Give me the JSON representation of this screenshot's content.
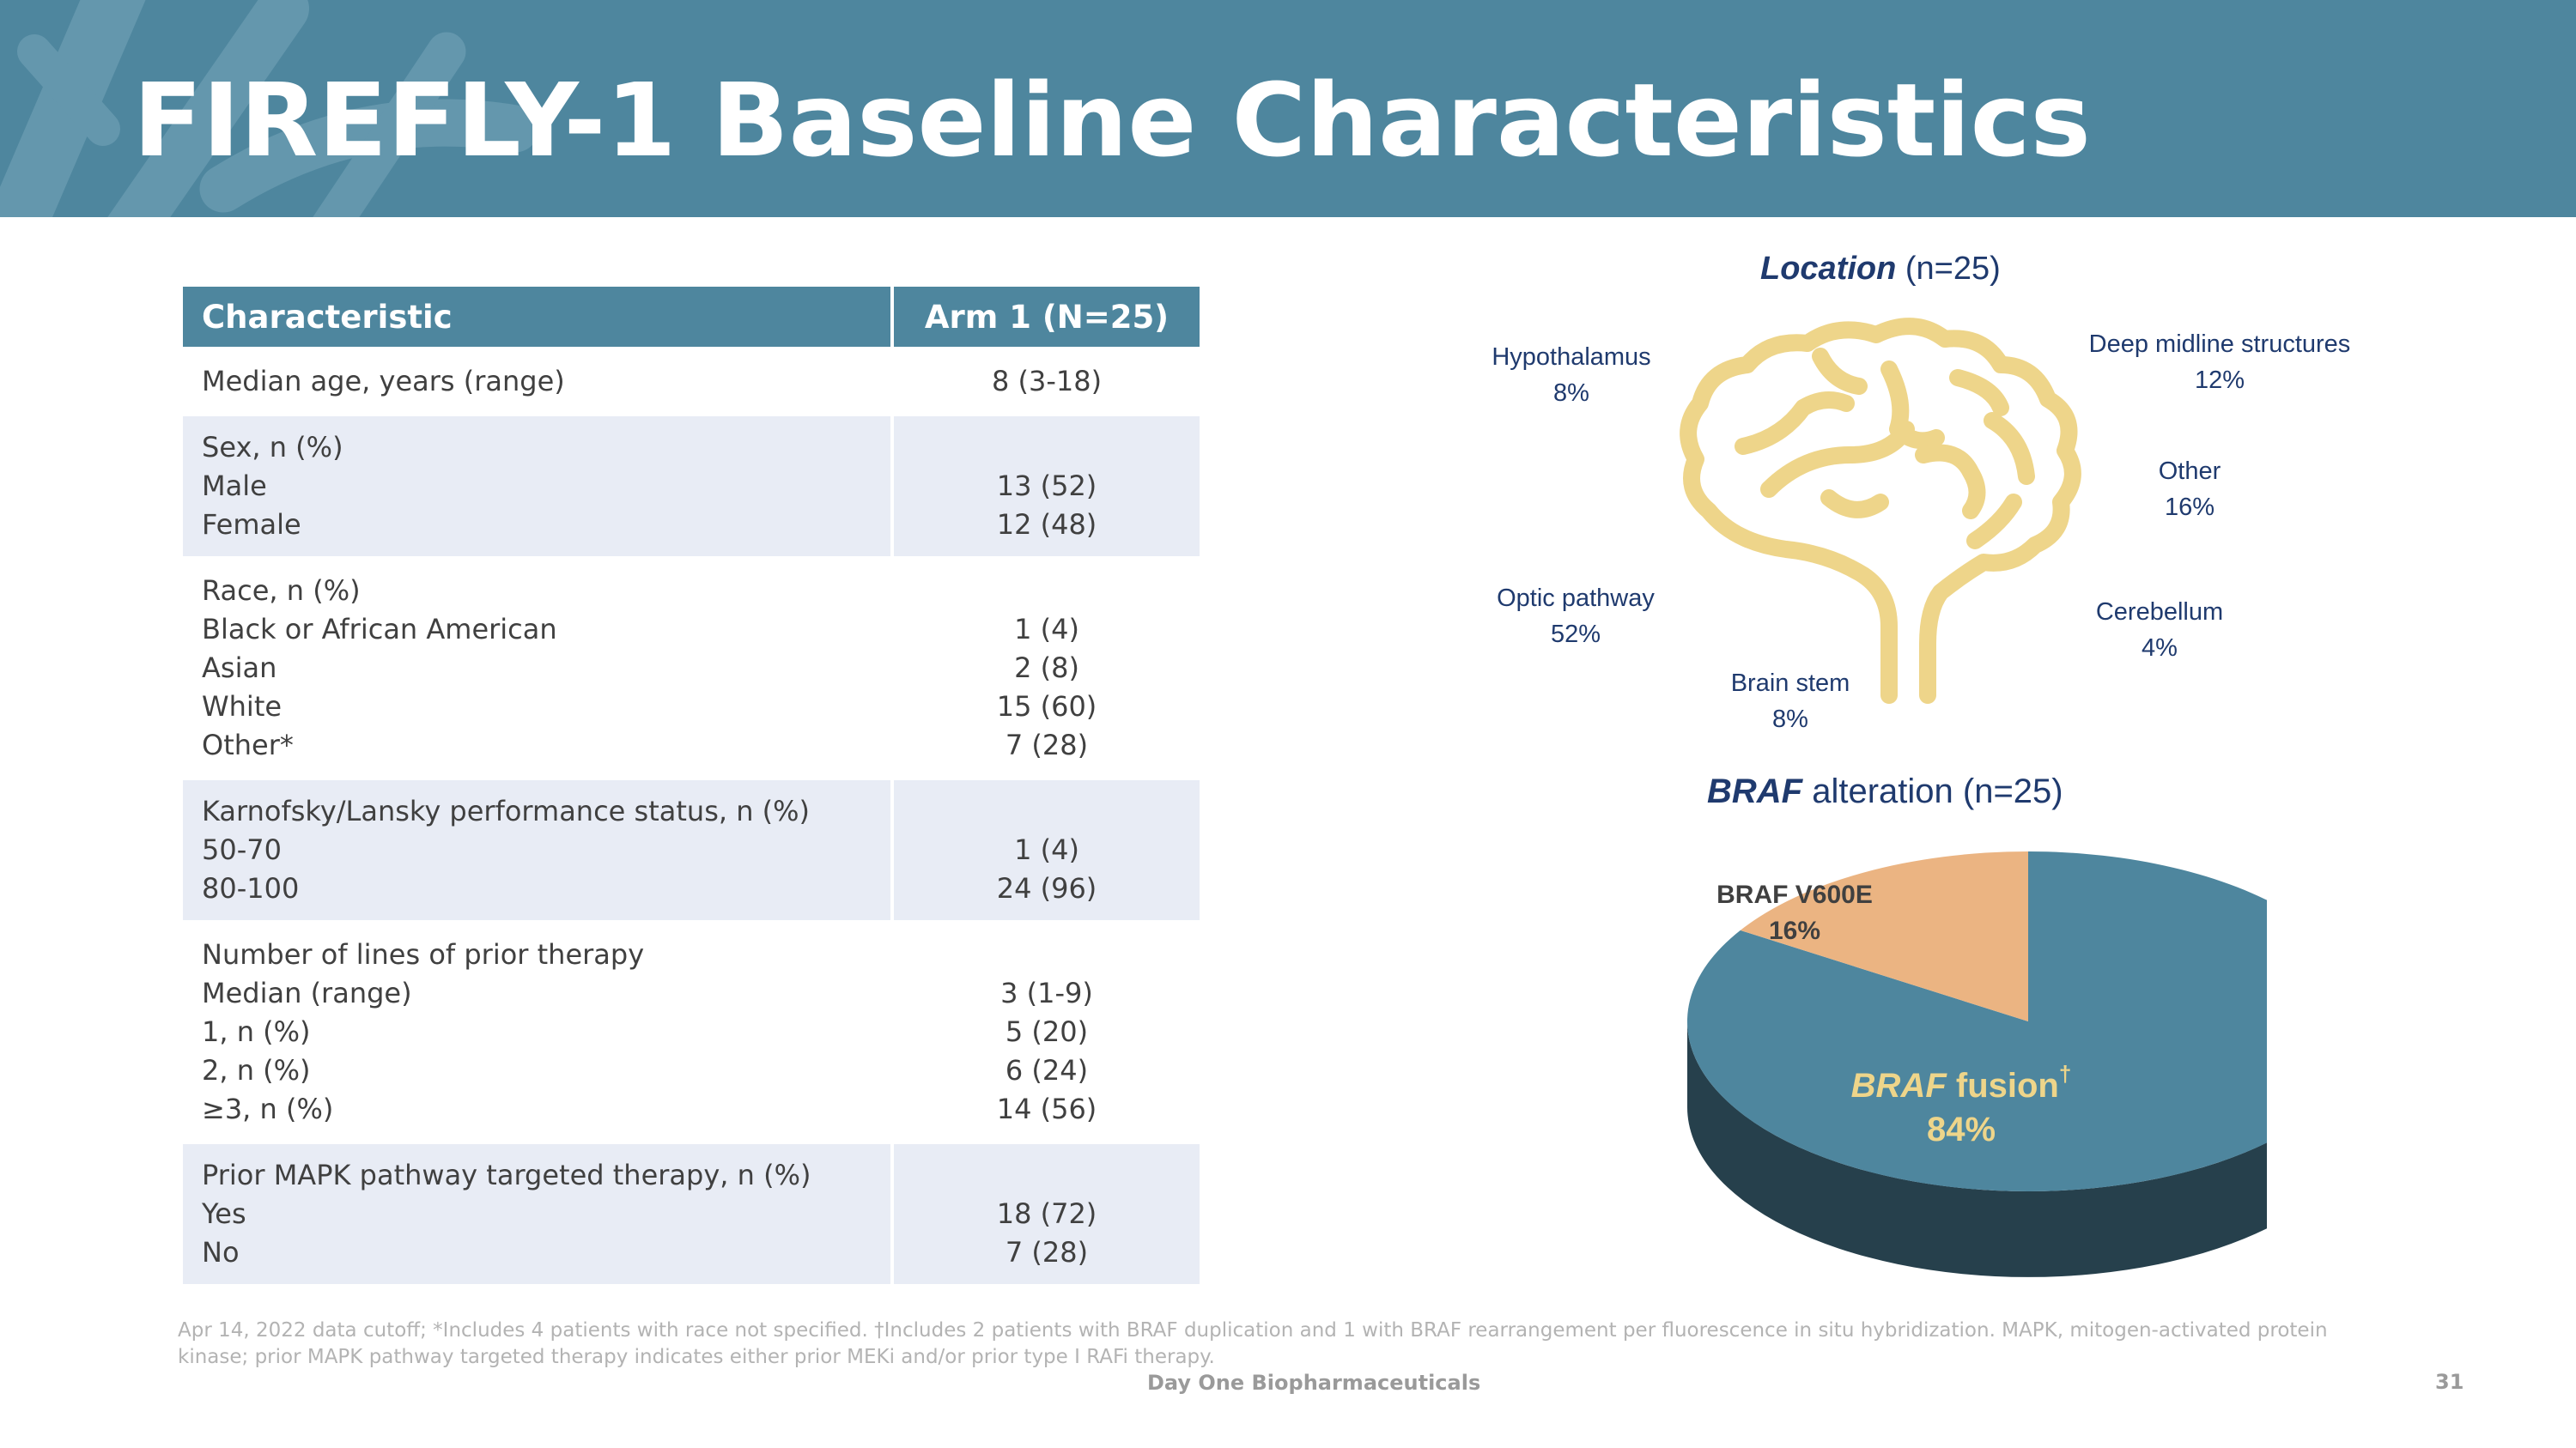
{
  "title": "FIREFLY-1 Baseline Characteristics",
  "table": {
    "headers": [
      "Characteristic",
      "Arm 1 (N=25)"
    ],
    "groups": [
      {
        "rows": [
          [
            "Median age, years (range)",
            "8 (3-18)"
          ]
        ]
      },
      {
        "rows": [
          [
            "Sex, n (%)",
            ""
          ],
          [
            "Male",
            "13 (52)"
          ],
          [
            "Female",
            "12 (48)"
          ]
        ]
      },
      {
        "rows": [
          [
            "Race, n (%)",
            ""
          ],
          [
            "Black or African American",
            "1 (4)"
          ],
          [
            "Asian",
            "2 (8)"
          ],
          [
            "White",
            "15 (60)"
          ],
          [
            "Other*",
            "7 (28)"
          ]
        ]
      },
      {
        "rows": [
          [
            "Karnofsky/Lansky performance status, n (%)",
            ""
          ],
          [
            "50-70",
            "1 (4)"
          ],
          [
            "80-100",
            "24 (96)"
          ]
        ]
      },
      {
        "rows": [
          [
            "Number of lines of prior therapy",
            ""
          ],
          [
            "Median (range)",
            "3 (1-9)"
          ],
          [
            "1, n (%)",
            "5 (20)"
          ],
          [
            "2, n (%)",
            "6 (24)"
          ],
          [
            "≥3, n (%)",
            "14 (56)"
          ]
        ]
      },
      {
        "rows": [
          [
            "Prior MAPK pathway targeted therapy, n (%)",
            ""
          ],
          [
            "Yes",
            "18 (72)"
          ],
          [
            "No",
            "7 (28)"
          ]
        ]
      }
    ]
  },
  "location": {
    "title_em": "Location",
    "title_rest": " (n=25)",
    "items": [
      {
        "name": "Hypothalamus",
        "pct": "8%"
      },
      {
        "name": "Deep midline structures",
        "pct": "12%"
      },
      {
        "name": "Other",
        "pct": "16%"
      },
      {
        "name": "Optic pathway",
        "pct": "52%"
      },
      {
        "name": "Cerebellum",
        "pct": "4%"
      },
      {
        "name": "Brain stem",
        "pct": "8%"
      }
    ],
    "icon": "brain-icon",
    "icon_color": "#eed58a"
  },
  "braf": {
    "title_em": "BRAF",
    "title_rest": " alteration (n=25)",
    "slices": [
      {
        "label": "BRAF V600E",
        "pct": "16%",
        "value": 16,
        "color": "#ebb482"
      },
      {
        "label_em": "BRAF",
        "label_rest": " fusion",
        "sup": "†",
        "pct": "84%",
        "value": 84,
        "color": "#4e869e",
        "side_color": "#26404c",
        "label_color": "#eed58a"
      }
    ]
  },
  "footnote": "Apr 14, 2022 data cutoff; *Includes 4 patients with race not specified. †Includes 2 patients with BRAF duplication and 1 with BRAF rearrangement per fluorescence in situ hybridization. MAPK, mitogen-activated protein kinase; prior MAPK pathway targeted therapy indicates either prior MEKi and/or prior type I RAFi therapy.",
  "company": "Day One Biopharmaceuticals",
  "page_number": "31",
  "colors": {
    "header_bg": "#4e869e",
    "table_shade": "#e8ecf5",
    "navy_text": "#1f3a6e"
  }
}
